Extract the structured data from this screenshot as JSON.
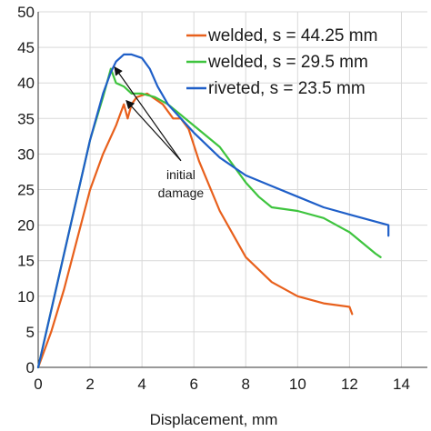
{
  "chart_data": {
    "type": "line",
    "title": "",
    "xlabel": "Displacement, mm",
    "ylabel": "",
    "xlim": [
      0,
      15
    ],
    "ylim": [
      0,
      50
    ],
    "xticks": [
      0,
      2,
      4,
      6,
      8,
      10,
      12,
      14
    ],
    "yticks": [
      0,
      5,
      10,
      15,
      20,
      25,
      30,
      35,
      40,
      45,
      50
    ],
    "grid": true,
    "legend_position": "top-right",
    "series": [
      {
        "name": "welded, s = 44.25 mm",
        "color": "#e8601c",
        "x": [
          0,
          0.5,
          1,
          1.5,
          2,
          2.5,
          3,
          3.3,
          3.45,
          3.6,
          3.8,
          4.2,
          4.8,
          5.2,
          5.5,
          5.8,
          6.2,
          7,
          8,
          9,
          10,
          11,
          12,
          12.1
        ],
        "y": [
          0,
          5,
          11,
          18,
          25,
          30,
          34,
          37,
          35,
          37,
          38,
          38.5,
          37,
          35,
          35,
          33.5,
          29,
          22,
          15.5,
          12,
          10,
          9,
          8.5,
          7.5
        ]
      },
      {
        "name": "welded, s = 29.5 mm",
        "color": "#3ec43e",
        "x": [
          0,
          0.5,
          1,
          1.5,
          2,
          2.5,
          2.8,
          3.0,
          3.3,
          3.6,
          4,
          4.5,
          5,
          5.5,
          6,
          7,
          8,
          8.5,
          9,
          10,
          11,
          12,
          13,
          13.2
        ],
        "y": [
          0,
          8,
          16,
          24,
          32,
          38,
          42,
          40,
          39.5,
          38.5,
          38.5,
          38,
          37,
          35.5,
          34,
          31,
          26,
          24,
          22.5,
          22,
          21,
          19,
          16,
          15.5
        ]
      },
      {
        "name": "riveted, s = 23.5 mm",
        "color": "#1f5fc8",
        "x": [
          0,
          0.5,
          1,
          1.5,
          2,
          2.5,
          2.8,
          3.0,
          3.3,
          3.6,
          4,
          4.3,
          4.6,
          5,
          5.5,
          6,
          7,
          8,
          9,
          10,
          11,
          12,
          13,
          13.5,
          13.5
        ],
        "y": [
          0,
          8,
          16,
          24,
          32,
          38.5,
          41.5,
          43,
          44,
          44,
          43.5,
          42,
          39.5,
          37,
          35,
          33,
          29.5,
          27,
          25.5,
          24,
          22.5,
          21.5,
          20.5,
          20,
          18.5
        ]
      }
    ],
    "annotations": [
      {
        "text_lines": [
          "initial",
          "damage"
        ],
        "x": 5.5,
        "y": 26.5,
        "arrow_targets": [
          [
            3.4,
            37.5
          ],
          [
            2.95,
            42.2
          ]
        ]
      }
    ]
  }
}
